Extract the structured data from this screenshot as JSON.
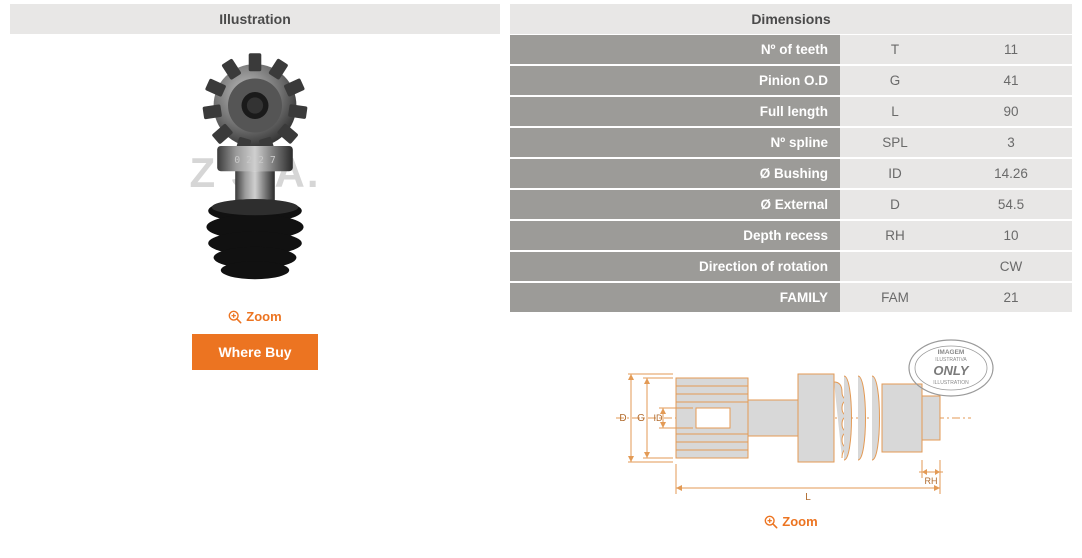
{
  "headers": {
    "illustration": "Illustration",
    "dimensions": "Dimensions"
  },
  "illustration": {
    "watermark": "Z   S.A.",
    "zoom_label": "Zoom",
    "where_buy_label": "Where Buy"
  },
  "specs": {
    "rows": [
      {
        "label": "Nº of teeth",
        "code": "T",
        "value": "11"
      },
      {
        "label": "Pinion O.D",
        "code": "G",
        "value": "41"
      },
      {
        "label": "Full length",
        "code": "L",
        "value": "90"
      },
      {
        "label": "Nº spline",
        "code": "SPL",
        "value": "3"
      },
      {
        "label": "Ø Bushing",
        "code": "ID",
        "value": "14.26"
      },
      {
        "label": "Ø External",
        "code": "D",
        "value": "54.5"
      },
      {
        "label": "Depth recess",
        "code": "RH",
        "value": "10"
      },
      {
        "label": "Direction of rotation",
        "code": "",
        "value": "CW"
      },
      {
        "label": "FAMILY",
        "code": "FAM",
        "value": "21"
      }
    ],
    "label_bg": "#9c9b98",
    "cell_bg": "#e8e7e6",
    "label_color": "#ffffff",
    "cell_color": "#6a6a6a"
  },
  "drawing": {
    "zoom_label": "Zoom",
    "dims": {
      "D": "D",
      "G": "G",
      "ID": "ID",
      "L": "L",
      "RH": "RH"
    },
    "stamp": {
      "line1": "IMAGEM",
      "line2": "ILUSTRATIVA",
      "mid": "ONLY",
      "line3": "ILLUSTRATION"
    },
    "stroke": "#e39a55",
    "fill": "#d8d8d8"
  },
  "accent": "#ec7421"
}
